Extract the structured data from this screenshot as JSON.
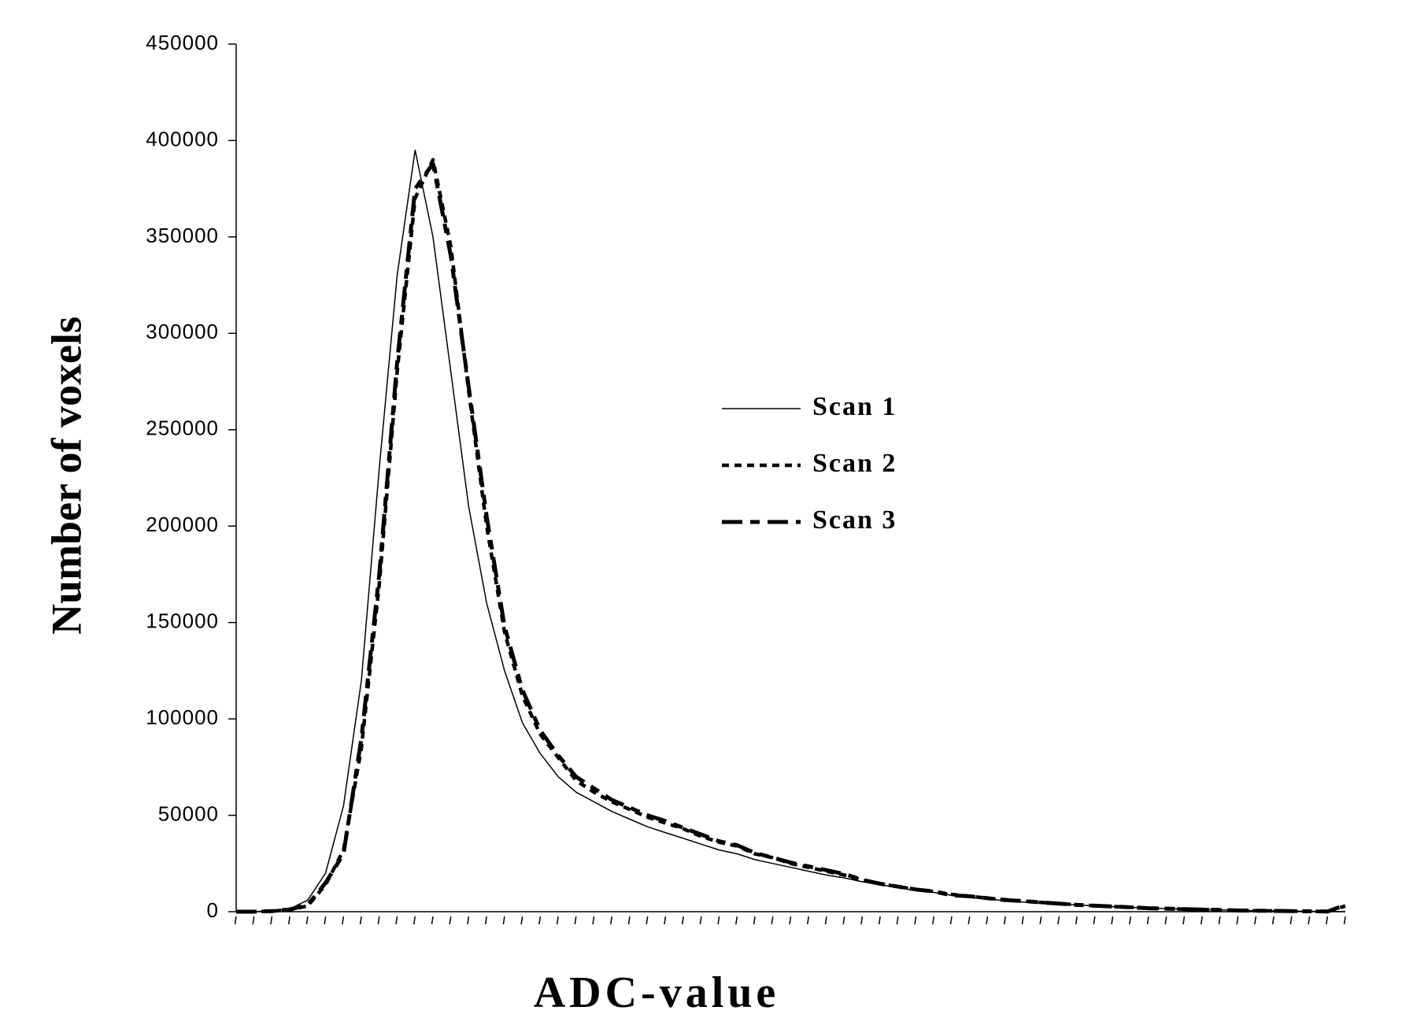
{
  "chart_data": {
    "type": "line",
    "x_label": "ADC-value",
    "y_label": "Number of voxels",
    "categories": [
      null,
      null,
      null,
      null,
      null,
      null,
      null,
      null,
      null,
      null,
      null,
      null,
      null,
      null,
      null,
      null,
      null,
      null,
      null,
      null,
      null,
      null,
      null,
      null,
      null,
      null,
      null,
      null,
      null,
      null,
      null,
      null,
      null,
      null,
      null,
      null,
      null,
      null,
      null,
      null,
      null,
      null,
      null,
      null,
      null,
      null,
      null,
      null,
      null,
      null,
      null,
      null,
      null,
      null,
      null,
      null,
      null,
      null,
      null,
      null,
      null,
      null,
      null
    ],
    "series": [
      {
        "name": "Scan 1",
        "color": "#000000",
        "dash": "solid",
        "values": [
          0,
          0,
          500,
          1500,
          6000,
          20000,
          55000,
          120000,
          230000,
          330000,
          395000,
          350000,
          280000,
          210000,
          160000,
          125000,
          98000,
          82000,
          70000,
          62000,
          57000,
          52000,
          48000,
          44000,
          41000,
          38000,
          35000,
          32000,
          30000,
          27000,
          25000,
          23000,
          21000,
          19000,
          17500,
          15500,
          14000,
          12500,
          11000,
          10000,
          8500,
          7500,
          6500,
          5800,
          5000,
          4500,
          4000,
          3500,
          3000,
          2600,
          2200,
          1900,
          1600,
          1300,
          1100,
          900,
          700,
          500,
          400,
          300,
          200,
          100,
          0
        ]
      },
      {
        "name": "Scan 2",
        "color": "#000000",
        "dash": "dotted",
        "values": [
          0,
          0,
          300,
          1000,
          3000,
          14000,
          32000,
          85000,
          170000,
          280000,
          370000,
          390000,
          345000,
          270000,
          200000,
          145000,
          112000,
          92000,
          80000,
          68000,
          62000,
          57000,
          53000,
          49000,
          46000,
          43000,
          39000,
          36000,
          34000,
          30000,
          28000,
          25000,
          23000,
          21000,
          19000,
          16500,
          14500,
          13000,
          11500,
          10500,
          9000,
          8000,
          7000,
          6200,
          5500,
          4800,
          4200,
          3600,
          3100,
          2700,
          2300,
          1900,
          1600,
          1300,
          1100,
          900,
          700,
          500,
          400,
          300,
          200,
          100,
          3000
        ]
      },
      {
        "name": "Scan 3",
        "color": "#000000",
        "dash": "dashed",
        "values": [
          0,
          0,
          300,
          1200,
          3500,
          15000,
          30000,
          90000,
          175000,
          285000,
          375000,
          388000,
          340000,
          272000,
          205000,
          148000,
          115000,
          94000,
          81000,
          70000,
          64000,
          58000,
          54000,
          50000,
          47000,
          43500,
          40000,
          36500,
          34500,
          30500,
          28000,
          25500,
          23500,
          21500,
          19500,
          16500,
          14500,
          13000,
          11500,
          10500,
          8500,
          8000,
          7000,
          6000,
          5500,
          4800,
          4200,
          3500,
          3100,
          2700,
          2300,
          1800,
          1600,
          1300,
          1100,
          900,
          600,
          500,
          400,
          300,
          200,
          100,
          3500
        ]
      }
    ],
    "ylim": [
      0,
      450000
    ],
    "yticks": [
      0,
      50000,
      100000,
      150000,
      200000,
      250000,
      300000,
      350000,
      400000,
      450000
    ],
    "grid": false,
    "legend": "center-right"
  }
}
